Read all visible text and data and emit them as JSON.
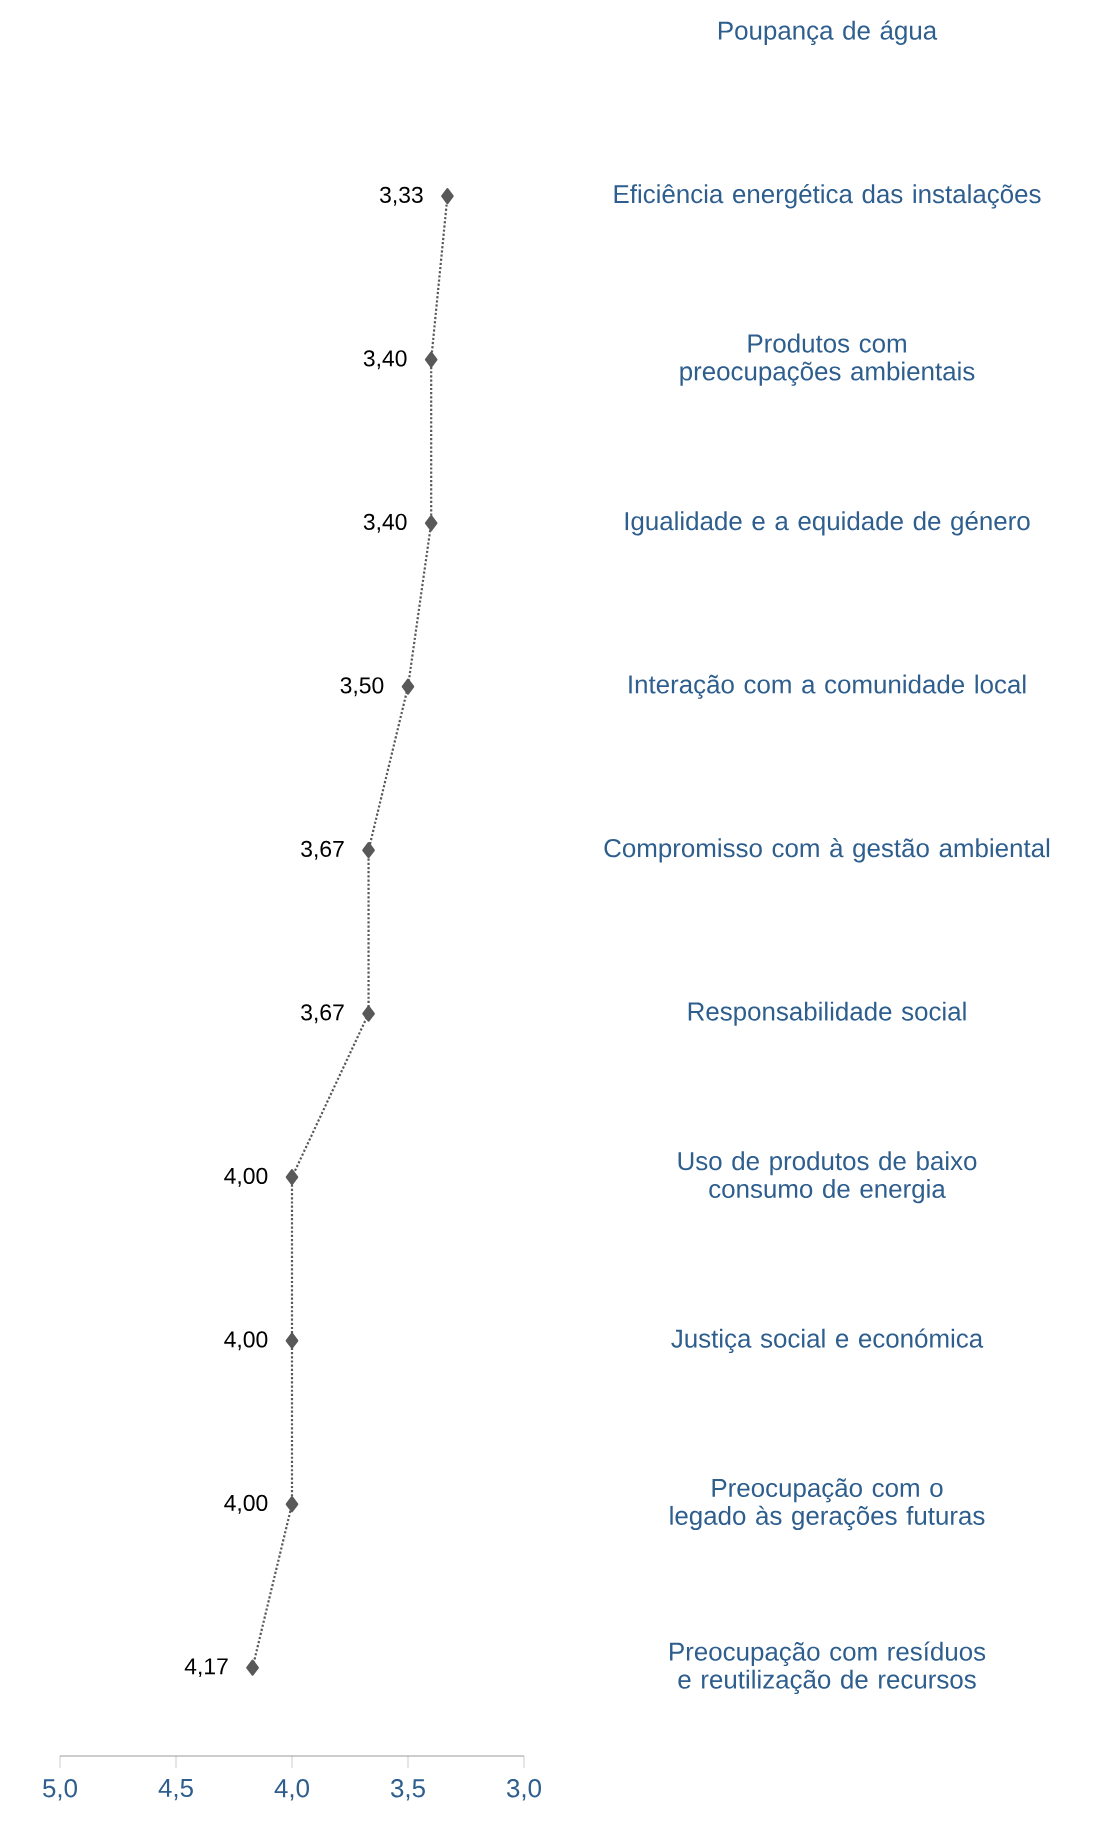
{
  "chart_data": {
    "type": "line",
    "orientation": "horizontal",
    "categories": [
      "Poupança de água",
      "Eficiência energética das instalações",
      "Produtos com preocupações ambientais",
      "Igualidade e a equidade de género",
      "Interação com a comunidade local",
      "Compromisso com à gestão ambiental",
      "Responsabilidade social",
      "Uso de produtos de baixo consumo de energia",
      "Justiça social e económica",
      "Preocupação com o legado às gerações futuras",
      "Preocupação com resíduos e reutilização de recursos"
    ],
    "series": [
      {
        "color": "#595959",
        "values": [
          null,
          3.33,
          3.4,
          3.4,
          3.5,
          3.67,
          3.67,
          4.0,
          4.0,
          4.0,
          4.17
        ],
        "value_labels": [
          null,
          "3,33",
          "3,40",
          "3,40",
          "3,50",
          "3,67",
          "3,67",
          "4,00",
          "4,00",
          "4,00",
          "4,17"
        ]
      }
    ],
    "xlim": [
      5,
      3
    ],
    "xticks": [
      {
        "value": 5,
        "label": "5,0"
      },
      {
        "value": 4.5,
        "label": "4,5"
      },
      {
        "value": 4,
        "label": "4,0"
      },
      {
        "value": 3.5,
        "label": "3,5"
      },
      {
        "value": 3,
        "label": "3,0"
      }
    ],
    "marker": "diamond",
    "line_style": "dotted",
    "grid": false
  }
}
